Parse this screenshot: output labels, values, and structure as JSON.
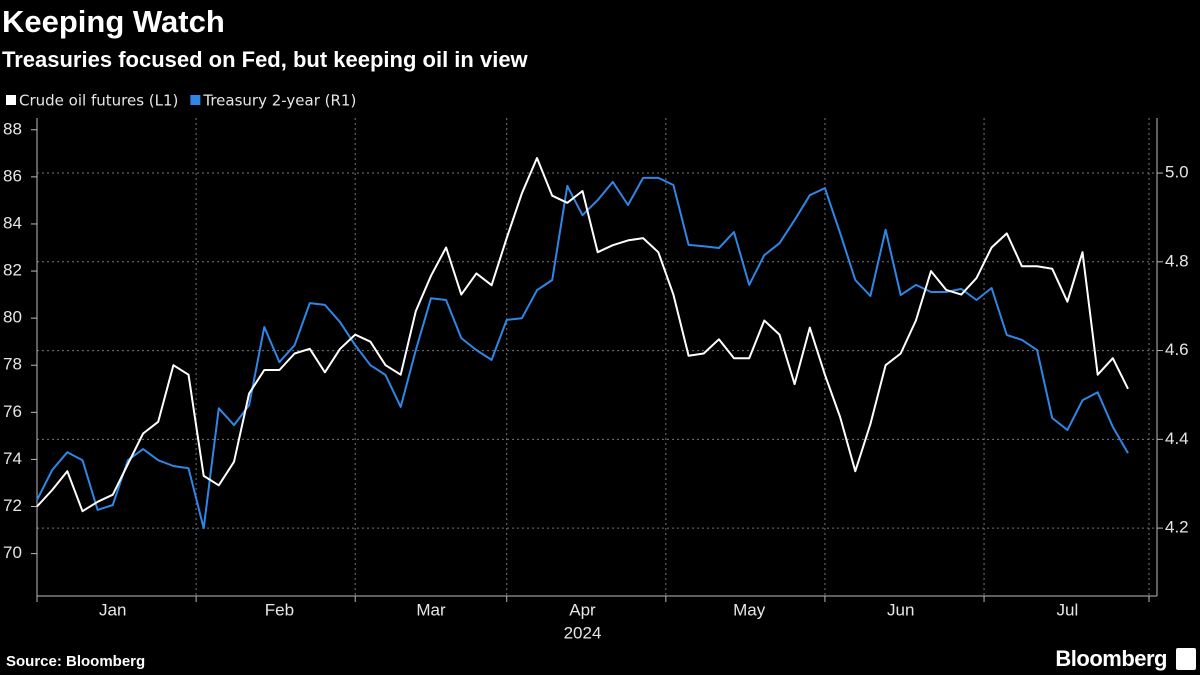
{
  "chart_data": {
    "type": "line",
    "title": "Keeping Watch",
    "subtitle": "Treasuries focused on Fed, but keeping oil in view",
    "x_label": "2024",
    "categories": [
      null,
      null,
      null,
      null,
      null,
      "Jan",
      null,
      null,
      null,
      null,
      null,
      null,
      null,
      null,
      null,
      null,
      "Feb",
      null,
      null,
      null,
      null,
      null,
      null,
      null,
      null,
      null,
      "Mar",
      null,
      null,
      null,
      null,
      null,
      null,
      null,
      null,
      null,
      "Apr",
      null,
      null,
      null,
      null,
      null,
      null,
      null,
      null,
      null,
      null,
      "May",
      null,
      null,
      null,
      null,
      null,
      null,
      null,
      null,
      null,
      "Jun",
      null,
      null,
      null,
      null,
      null,
      null,
      null,
      null,
      null,
      null,
      "Jul",
      null,
      null,
      null,
      null
    ],
    "series": [
      {
        "name": "Crude oil futures (L1)",
        "color": "#ffffff",
        "values": [
          72.0,
          72.7,
          73.5,
          71.8,
          72.2,
          72.5,
          73.8,
          75.1,
          75.6,
          78.0,
          77.6,
          73.3,
          72.9,
          73.9,
          76.8,
          77.8,
          77.8,
          78.5,
          78.7,
          77.7,
          78.7,
          79.3,
          79.0,
          78.0,
          77.6,
          80.3,
          81.8,
          83.0,
          81.0,
          81.9,
          81.4,
          83.4,
          85.3,
          86.8,
          85.2,
          84.9,
          85.4,
          82.8,
          83.1,
          83.3,
          83.4,
          82.8,
          81.0,
          78.4,
          78.5,
          79.1,
          78.3,
          78.3,
          79.9,
          79.3,
          77.2,
          79.6,
          77.6,
          75.8,
          73.5,
          75.5,
          78.0,
          78.5,
          79.9,
          82.0,
          81.2,
          81.0,
          81.7,
          83.0,
          83.6,
          82.2,
          82.2,
          82.1,
          80.7,
          82.8,
          77.6,
          78.3,
          77.0
        ]
      },
      {
        "name": "Treasury 2-year (R1)",
        "color": "#2f86e6",
        "axis": "y2",
        "values": [
          4.263,
          4.331,
          4.371,
          4.353,
          4.241,
          4.252,
          4.353,
          4.378,
          4.353,
          4.34,
          4.335,
          4.2,
          4.47,
          4.432,
          4.477,
          4.653,
          4.574,
          4.612,
          4.707,
          4.703,
          4.664,
          4.612,
          4.567,
          4.545,
          4.473,
          4.601,
          4.718,
          4.714,
          4.628,
          4.601,
          4.579,
          4.669,
          4.673,
          4.736,
          4.759,
          4.971,
          4.905,
          4.939,
          4.98,
          4.928,
          4.989,
          4.989,
          4.973,
          4.838,
          4.835,
          4.831,
          4.867,
          4.748,
          4.815,
          4.842,
          4.894,
          4.95,
          4.966,
          4.865,
          4.759,
          4.723,
          4.872,
          4.725,
          4.748,
          4.732,
          4.732,
          4.739,
          4.714,
          4.741,
          4.635,
          4.624,
          4.601,
          4.448,
          4.421,
          4.488,
          4.506,
          4.428,
          4.369
        ]
      }
    ],
    "ylim": [
      68.2,
      88.5
    ],
    "yticks": [
      70,
      72,
      74,
      76,
      78,
      80,
      82,
      84,
      86,
      88
    ],
    "y2lim": [
      4.047,
      5.124
    ],
    "y2ticks": [
      4.2,
      4.4,
      4.6,
      4.8,
      {
        "value": 5,
        "label": "5.0"
      }
    ],
    "grid": true
  },
  "footer": {
    "source": "Source: Bloomberg",
    "logo": "Bloomberg"
  }
}
